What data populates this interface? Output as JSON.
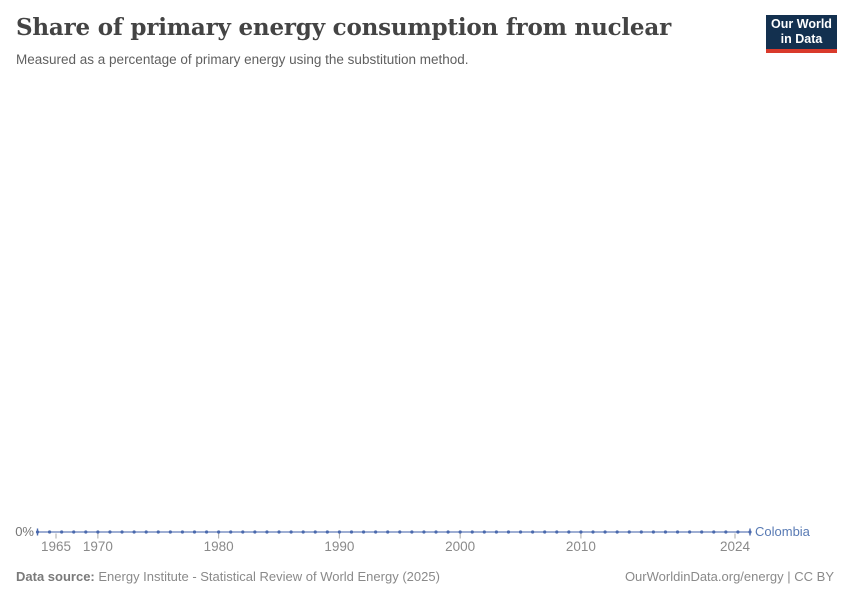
{
  "header": {
    "title": "Share of primary energy consumption from nuclear",
    "subtitle": "Measured as a percentage of primary energy using the substitution method.",
    "logo": {
      "line1": "Our World",
      "line2": "in Data",
      "bg_color": "#13304f",
      "accent_color": "#d93a2b"
    }
  },
  "chart_data": {
    "type": "line",
    "title": "Share of primary energy consumption from nuclear",
    "subtitle": "Measured as a percentage of primary energy using the substitution method.",
    "xlabel": "",
    "ylabel": "",
    "grid": false,
    "legend_position": "right-of-line-end",
    "x": [
      1965,
      1966,
      1967,
      1968,
      1969,
      1970,
      1971,
      1972,
      1973,
      1974,
      1975,
      1976,
      1977,
      1978,
      1979,
      1980,
      1981,
      1982,
      1983,
      1984,
      1985,
      1986,
      1987,
      1988,
      1989,
      1990,
      1991,
      1992,
      1993,
      1994,
      1995,
      1996,
      1997,
      1998,
      1999,
      2000,
      2001,
      2002,
      2003,
      2004,
      2005,
      2006,
      2007,
      2008,
      2009,
      2010,
      2011,
      2012,
      2013,
      2014,
      2015,
      2016,
      2017,
      2018,
      2019,
      2020,
      2021,
      2022,
      2023,
      2024
    ],
    "series": [
      {
        "name": "Colombia",
        "color": "#4a69ad",
        "label_color": "#587ab4",
        "values": [
          0,
          0,
          0,
          0,
          0,
          0,
          0,
          0,
          0,
          0,
          0,
          0,
          0,
          0,
          0,
          0,
          0,
          0,
          0,
          0,
          0,
          0,
          0,
          0,
          0,
          0,
          0,
          0,
          0,
          0,
          0,
          0,
          0,
          0,
          0,
          0,
          0,
          0,
          0,
          0,
          0,
          0,
          0,
          0,
          0,
          0,
          0,
          0,
          0,
          0,
          0,
          0,
          0,
          0,
          0,
          0,
          0,
          0,
          0,
          0
        ]
      }
    ],
    "x_ticks": [
      {
        "year": 1965,
        "label": "1965"
      },
      {
        "year": 1970,
        "label": "1970"
      },
      {
        "year": 1980,
        "label": "1980"
      },
      {
        "year": 1990,
        "label": "1990"
      },
      {
        "year": 2000,
        "label": "2000"
      },
      {
        "year": 2010,
        "label": "2010"
      },
      {
        "year": 2024,
        "label": "2024"
      }
    ],
    "y_axis": {
      "zero_label": "0%"
    },
    "xlim": [
      1965,
      2024
    ],
    "tick_color": "#a8a8a8",
    "axis_label_color": "#8a8a8a"
  },
  "footer": {
    "source_label": "Data source:",
    "source_text": "Energy Institute - Statistical Review of World Energy (2025)",
    "right_text": "OurWorldinData.org/energy | CC BY"
  }
}
